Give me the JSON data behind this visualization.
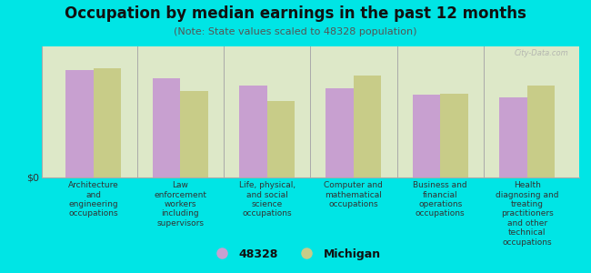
{
  "title": "Occupation by median earnings in the past 12 months",
  "subtitle": "(Note: State values scaled to 48328 population)",
  "background_color": "#00e5e5",
  "plot_bg_color": "#dde8c8",
  "categories": [
    "Architecture\nand\nengineering\noccupations",
    "Law\nenforcement\nworkers\nincluding\nsupervisors",
    "Life, physical,\nand social\nscience\noccupations",
    "Computer and\nmathematical\noccupations",
    "Business and\nfinancial\noperations\noccupations",
    "Health\ndiagnosing and\ntreating\npractitioners\nand other\ntechnical\noccupations"
  ],
  "values_48328": [
    0.82,
    0.76,
    0.7,
    0.68,
    0.63,
    0.61
  ],
  "values_michigan": [
    0.83,
    0.66,
    0.58,
    0.78,
    0.64,
    0.7
  ],
  "color_48328": "#c8a0d0",
  "color_michigan": "#c8cc88",
  "ylabel": "$0",
  "bar_width": 0.32,
  "watermark": "City-Data.com",
  "legend_48328": "48328",
  "legend_michigan": "Michigan",
  "title_fontsize": 12,
  "subtitle_fontsize": 8,
  "xlabel_fontsize": 6.5
}
